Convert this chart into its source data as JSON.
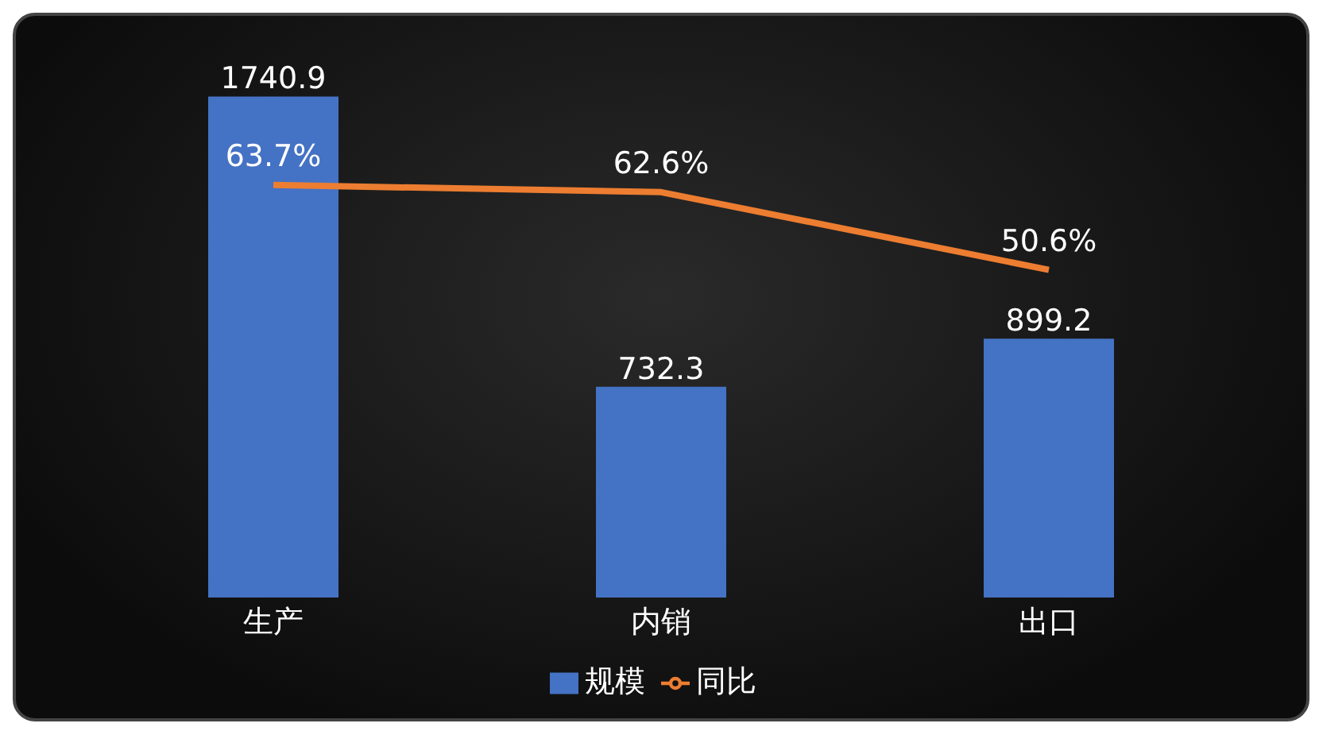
{
  "chart_data": {
    "type": "bar",
    "categories": [
      "生产",
      "内销",
      "出口"
    ],
    "series": [
      {
        "name": "规模",
        "color": "#4472c4",
        "values": [
          1740.9,
          732.3,
          899.2
        ],
        "value_labels": [
          "1740.9",
          "732.3",
          "899.2"
        ]
      },
      {
        "name": "同比",
        "type": "line",
        "axis": "y2",
        "color": "#ed7d31",
        "values": [
          63.7,
          62.6,
          50.6
        ],
        "value_labels": [
          "63.7%",
          "62.6%",
          "50.6%"
        ]
      }
    ],
    "legend": "bottom",
    "grid": false,
    "marker": "none",
    "tick_labels": "x"
  }
}
